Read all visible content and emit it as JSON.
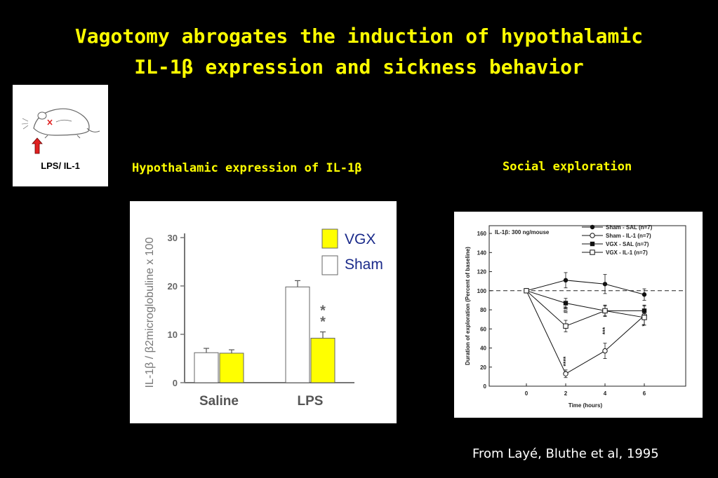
{
  "slide": {
    "title_line1": "Vagotomy abrogates the induction of hypothalamic",
    "title_line2": "IL-1β expression and sickness behavior",
    "credit": "From Layé, Bluthe et al, 1995",
    "colors": {
      "background": "#000000",
      "title": "#ffff00",
      "vgx_fill": "#ffff00",
      "legend_text": "#1a2a8a"
    }
  },
  "inset": {
    "label": "LPS/ IL-1",
    "icon": "mouse-with-vagus-cut-icon"
  },
  "chart_data": [
    {
      "type": "bar",
      "title": "Hypothalamic expression of IL-1β",
      "ylabel": "IL-1β / β2microglobuline x 100",
      "categories": [
        "Saline",
        "LPS"
      ],
      "ylim": [
        0,
        30
      ],
      "yticks": [
        0,
        10,
        20,
        30
      ],
      "series": [
        {
          "name": "Sham",
          "color": "#ffffff",
          "values": [
            6.2,
            19.8
          ],
          "errors": [
            0.9,
            1.3
          ]
        },
        {
          "name": "VGX",
          "color": "#ffff00",
          "values": [
            6.1,
            9.2
          ],
          "errors": [
            0.7,
            1.3
          ]
        }
      ],
      "legend_position": "top-right",
      "annotations": [
        {
          "text": "**",
          "category": "LPS",
          "series": "VGX"
        }
      ]
    },
    {
      "type": "line",
      "title": "Social exploration",
      "inner_label": "IL-1β: 300 ng/mouse",
      "xlabel": "Time (hours)",
      "ylabel": "Duration of exploration (Percent of baseline)",
      "x": [
        0,
        2,
        4,
        6
      ],
      "xticks": [
        0,
        2,
        4,
        6
      ],
      "ylim": [
        0,
        160
      ],
      "yticks": [
        0,
        20,
        40,
        60,
        80,
        100,
        120,
        140,
        160
      ],
      "baseline": 100,
      "series": [
        {
          "name": "Sham - SAL (n=7)",
          "marker": "filled-circle",
          "values": [
            100,
            111,
            107,
            96
          ],
          "errors": [
            0,
            8,
            10,
            6
          ]
        },
        {
          "name": "Sham - IL-1 (n=7)",
          "marker": "open-circle",
          "values": [
            100,
            13,
            37,
            74
          ],
          "errors": [
            0,
            4,
            8,
            10
          ]
        },
        {
          "name": "VGX - SAL (n=7)",
          "marker": "filled-square",
          "values": [
            100,
            87,
            79,
            79
          ],
          "errors": [
            0,
            5,
            6,
            6
          ]
        },
        {
          "name": "VGX - IL-1 (n=7)",
          "marker": "open-square",
          "values": [
            100,
            63,
            79,
            72
          ],
          "errors": [
            0,
            6,
            5,
            8
          ]
        }
      ],
      "legend_position": "top-right",
      "annotations": [
        {
          "text": "##",
          "x": 2,
          "near_series": "VGX - IL-1 (n=7)"
        },
        {
          "text": "****",
          "x": 2,
          "near_series": "Sham - IL-1 (n=7)"
        },
        {
          "text": "***",
          "x": 4,
          "near_series": "Sham - IL-1 (n=7)"
        },
        {
          "text": "*",
          "x": 6,
          "near_series": "Sham - IL-1 (n=7)"
        }
      ]
    }
  ]
}
